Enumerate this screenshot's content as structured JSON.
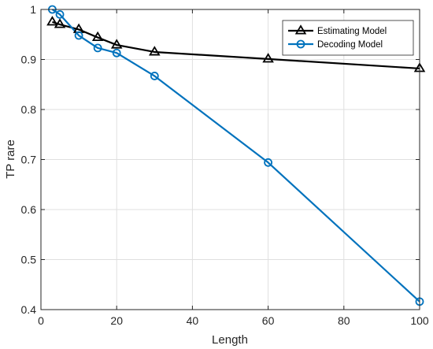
{
  "chart_data": {
    "type": "line",
    "title": "",
    "xlabel": "Length",
    "ylabel": "TP rare",
    "xlim": [
      0,
      100
    ],
    "ylim": [
      0.4,
      1.0
    ],
    "xticks": [
      0,
      20,
      40,
      60,
      80,
      100
    ],
    "yticks": [
      0.4,
      0.5,
      0.6,
      0.7,
      0.8,
      0.9,
      1.0
    ],
    "xtick_labels": [
      "0",
      "20",
      "40",
      "60",
      "80",
      "100"
    ],
    "ytick_labels": [
      "0.4",
      "0.5",
      "0.6",
      "0.7",
      "0.8",
      "0.9",
      "1"
    ],
    "grid": true,
    "legend_position": "top-right",
    "series": [
      {
        "name": "Estimating Model",
        "color": "#000000",
        "marker": "triangle",
        "x": [
          3,
          5,
          10,
          15,
          20,
          30,
          60,
          100
        ],
        "y": [
          0.975,
          0.97,
          0.96,
          0.944,
          0.929,
          0.915,
          0.901,
          0.882
        ]
      },
      {
        "name": "Decoding Model",
        "color": "#0072BD",
        "marker": "circle",
        "x": [
          3,
          5,
          10,
          15,
          20,
          30,
          60,
          100
        ],
        "y": [
          1.0,
          0.99,
          0.948,
          0.923,
          0.913,
          0.867,
          0.694,
          0.416
        ]
      }
    ]
  }
}
